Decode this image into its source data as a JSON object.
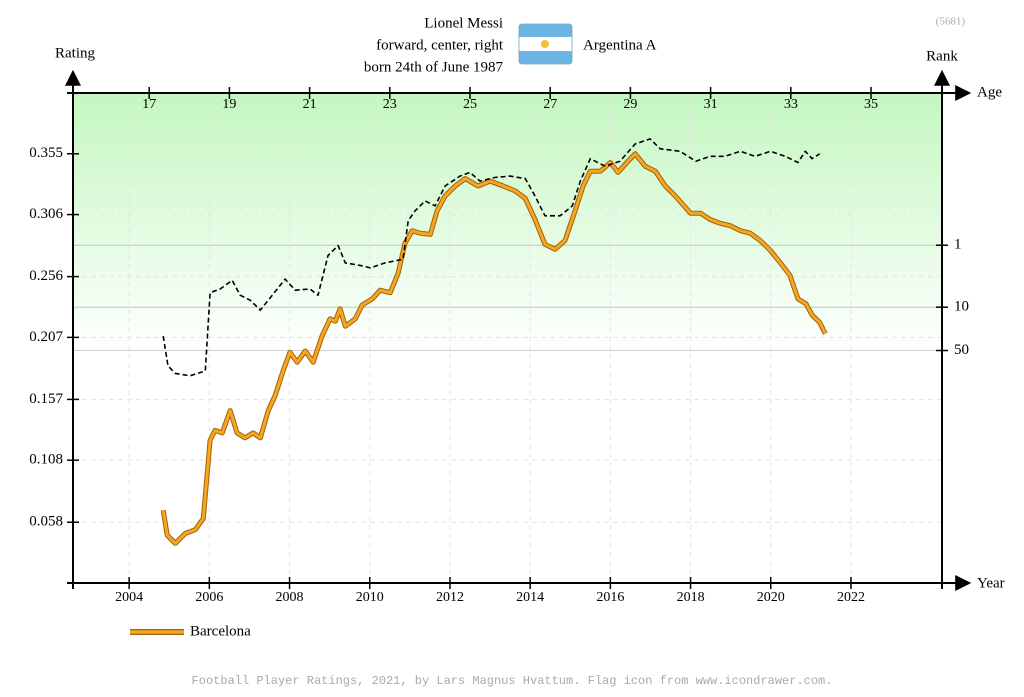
{
  "chart_data": {
    "type": "line",
    "title": "Lionel Messi",
    "subtitle_lines": [
      "forward, center, right",
      "born 24th of June 1987"
    ],
    "team_label": "Argentina A",
    "id_label": "(5681)",
    "ylabel": "Rating",
    "y2label": "Rank",
    "xlabel": "Year",
    "x2label": "Age",
    "footer": "Football Player Ratings, 2021, by Lars Magnus Hvattum. Flag icon from www.icondrawer.com.",
    "xlim": [
      2002.6,
      2024.27
    ],
    "xticks": [
      2004,
      2006,
      2008,
      2010,
      2012,
      2014,
      2016,
      2018,
      2020,
      2022
    ],
    "x2lim": [
      15.1,
      36.77
    ],
    "x2ticks": [
      17,
      19,
      21,
      23,
      25,
      27,
      29,
      31,
      33,
      35
    ],
    "ylim": [
      0.009,
      0.404
    ],
    "yticks": [
      0.058,
      0.108,
      0.157,
      0.207,
      0.256,
      0.306,
      0.355
    ],
    "y2scale": "log",
    "y2lim": [
      0.0035,
      282000
    ],
    "y2ticks": [
      1,
      10,
      50
    ],
    "grid": true,
    "series": [
      {
        "name": "Barcelona",
        "color": "#f5a623",
        "dash": false,
        "x": [
          2004.85,
          2004.95,
          2005.15,
          2005.4,
          2005.65,
          2005.85,
          2006.02,
          2006.14,
          2006.32,
          2006.52,
          2006.69,
          2006.89,
          2007.09,
          2007.27,
          2007.47,
          2007.64,
          2007.84,
          2008.01,
          2008.19,
          2008.39,
          2008.59,
          2008.81,
          2009.01,
          2009.14,
          2009.26,
          2009.39,
          2009.64,
          2009.81,
          2010.06,
          2010.26,
          2010.51,
          2010.71,
          2010.88,
          2011.06,
          2011.26,
          2011.51,
          2011.68,
          2011.88,
          2012.13,
          2012.38,
          2012.7,
          2013.0,
          2013.33,
          2013.63,
          2013.88,
          2014.12,
          2014.37,
          2014.62,
          2014.87,
          2015.12,
          2015.32,
          2015.5,
          2015.75,
          2016.0,
          2016.19,
          2016.44,
          2016.62,
          2016.87,
          2017.12,
          2017.37,
          2017.62,
          2018.0,
          2018.25,
          2018.49,
          2018.74,
          2018.99,
          2019.24,
          2019.49,
          2019.74,
          2019.99,
          2020.24,
          2020.48,
          2020.68,
          2020.88,
          2021.03,
          2021.22,
          2021.36
        ],
        "values": [
          0.0677,
          0.0475,
          0.041,
          0.049,
          0.052,
          0.061,
          0.124,
          0.132,
          0.13,
          0.148,
          0.13,
          0.126,
          0.13,
          0.126,
          0.148,
          0.16,
          0.18,
          0.195,
          0.187,
          0.196,
          0.187,
          0.208,
          0.222,
          0.22,
          0.23,
          0.216,
          0.222,
          0.233,
          0.238,
          0.245,
          0.243,
          0.259,
          0.283,
          0.293,
          0.291,
          0.29,
          0.309,
          0.321,
          0.329,
          0.335,
          0.329,
          0.333,
          0.329,
          0.325,
          0.319,
          0.302,
          0.282,
          0.278,
          0.285,
          0.309,
          0.329,
          0.341,
          0.341,
          0.348,
          0.34,
          0.349,
          0.355,
          0.345,
          0.341,
          0.329,
          0.321,
          0.307,
          0.307,
          0.302,
          0.299,
          0.297,
          0.293,
          0.291,
          0.285,
          0.277,
          0.267,
          0.257,
          0.238,
          0.234,
          0.225,
          0.219,
          0.21
        ]
      },
      {
        "color": "#000000",
        "dash": true,
        "x": [
          2004.85,
          2004.97,
          2005.15,
          2005.52,
          2005.9,
          2006.02,
          2006.27,
          2006.57,
          2006.77,
          2007.02,
          2007.27,
          2007.52,
          2007.89,
          2008.14,
          2008.51,
          2008.71,
          2008.96,
          2009.21,
          2009.39,
          2009.76,
          2010.01,
          2010.38,
          2010.83,
          2010.96,
          2011.13,
          2011.38,
          2011.63,
          2011.88,
          2012.25,
          2012.5,
          2012.75,
          2013.13,
          2013.5,
          2013.88,
          2014.12,
          2014.37,
          2014.75,
          2015.05,
          2015.25,
          2015.5,
          2015.87,
          2016.24,
          2016.62,
          2016.99,
          2017.24,
          2017.74,
          2018.13,
          2018.49,
          2018.86,
          2019.24,
          2019.61,
          2019.99,
          2020.36,
          2020.68,
          2020.86,
          2021.03,
          2021.22
        ],
        "values": [
          0.208,
          0.184,
          0.178,
          0.176,
          0.18,
          0.243,
          0.246,
          0.253,
          0.241,
          0.237,
          0.229,
          0.239,
          0.254,
          0.245,
          0.246,
          0.241,
          0.273,
          0.281,
          0.267,
          0.265,
          0.263,
          0.267,
          0.27,
          0.301,
          0.309,
          0.317,
          0.313,
          0.329,
          0.337,
          0.34,
          0.333,
          0.336,
          0.337,
          0.335,
          0.321,
          0.305,
          0.305,
          0.313,
          0.333,
          0.351,
          0.345,
          0.349,
          0.363,
          0.367,
          0.359,
          0.357,
          0.349,
          0.353,
          0.353,
          0.357,
          0.353,
          0.357,
          0.353,
          0.348,
          0.357,
          0.351,
          0.355
        ]
      }
    ]
  }
}
